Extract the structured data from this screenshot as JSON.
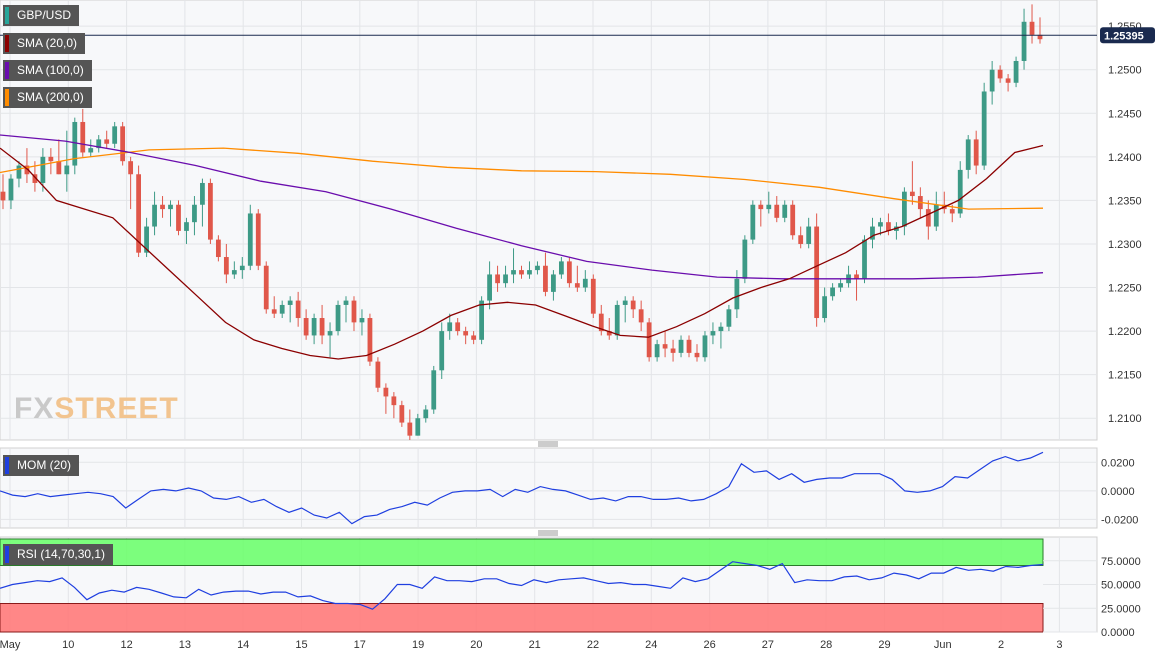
{
  "chart_data": [
    {
      "type": "candlestick",
      "title": "GBP/USD",
      "ylim": [
        1.2075,
        1.258
      ],
      "yticks": [
        "1.2550",
        "1.2500",
        "1.2450",
        "1.2400",
        "1.2350",
        "1.2300",
        "1.2250",
        "1.2200",
        "1.2150",
        "1.2100"
      ],
      "last_price": "1.25395",
      "x_labels": [
        "May",
        "10",
        "12",
        "13",
        "14",
        "15",
        "17",
        "19",
        "20",
        "21",
        "22",
        "24",
        "26",
        "27",
        "28",
        "29",
        "Jun",
        "2",
        "3"
      ],
      "legend": [
        {
          "label": "GBP/USD",
          "color": "#26a69a"
        },
        {
          "label": "SMA (20,0)",
          "color": "#8b0000"
        },
        {
          "label": "SMA (100,0)",
          "color": "#6a0dad"
        },
        {
          "label": "SMA (200,0)",
          "color": "#ff8c00"
        }
      ],
      "candles": [
        [
          1.236,
          1.238,
          1.234,
          1.235
        ],
        [
          1.235,
          1.238,
          1.234,
          1.2375
        ],
        [
          1.2375,
          1.2395,
          1.2365,
          1.239
        ],
        [
          1.239,
          1.241,
          1.237,
          1.238
        ],
        [
          1.238,
          1.2395,
          1.236,
          1.237
        ],
        [
          1.237,
          1.241,
          1.236,
          1.24
        ],
        [
          1.24,
          1.241,
          1.238,
          1.2395
        ],
        [
          1.2395,
          1.242,
          1.238,
          1.238
        ],
        [
          1.238,
          1.243,
          1.236,
          1.239
        ],
        [
          1.239,
          1.2445,
          1.238,
          1.244
        ],
        [
          1.244,
          1.2455,
          1.24,
          1.2405
        ],
        [
          1.2405,
          1.242,
          1.24,
          1.241
        ],
        [
          1.241,
          1.2425,
          1.2405,
          1.242
        ],
        [
          1.242,
          1.243,
          1.241,
          1.2415
        ],
        [
          1.2415,
          1.244,
          1.241,
          1.2435
        ],
        [
          1.2435,
          1.244,
          1.239,
          1.2395
        ],
        [
          1.2395,
          1.24,
          1.234,
          1.238
        ],
        [
          1.238,
          1.239,
          1.2285,
          1.229
        ],
        [
          1.229,
          1.233,
          1.2285,
          1.232
        ],
        [
          1.232,
          1.236,
          1.231,
          1.2345
        ],
        [
          1.2345,
          1.2355,
          1.233,
          1.234
        ],
        [
          1.234,
          1.235,
          1.232,
          1.2345
        ],
        [
          1.2345,
          1.235,
          1.231,
          1.2315
        ],
        [
          1.2315,
          1.233,
          1.23,
          1.2325
        ],
        [
          1.2325,
          1.2355,
          1.231,
          1.2345
        ],
        [
          1.2345,
          1.2375,
          1.232,
          1.237
        ],
        [
          1.237,
          1.2375,
          1.23,
          1.2305
        ],
        [
          1.2305,
          1.231,
          1.228,
          1.2285
        ],
        [
          1.2285,
          1.23,
          1.2255,
          1.2265
        ],
        [
          1.2265,
          1.228,
          1.226,
          1.227
        ],
        [
          1.227,
          1.2285,
          1.226,
          1.2275
        ],
        [
          1.2275,
          1.2345,
          1.227,
          1.2335
        ],
        [
          1.2335,
          1.234,
          1.227,
          1.2275
        ],
        [
          1.2275,
          1.228,
          1.222,
          1.2225
        ],
        [
          1.2225,
          1.224,
          1.2215,
          1.222
        ],
        [
          1.222,
          1.2235,
          1.2215,
          1.223
        ],
        [
          1.223,
          1.224,
          1.221,
          1.2235
        ],
        [
          1.2235,
          1.2245,
          1.2205,
          1.2215
        ],
        [
          1.2215,
          1.2225,
          1.219,
          1.2195
        ],
        [
          1.2195,
          1.222,
          1.2185,
          1.2215
        ],
        [
          1.2215,
          1.223,
          1.2185,
          1.2195
        ],
        [
          1.2195,
          1.221,
          1.217,
          1.22
        ],
        [
          1.22,
          1.2235,
          1.2195,
          1.223
        ],
        [
          1.223,
          1.224,
          1.221,
          1.2235
        ],
        [
          1.2235,
          1.224,
          1.22,
          1.221
        ],
        [
          1.221,
          1.2225,
          1.2195,
          1.2215
        ],
        [
          1.2215,
          1.222,
          1.216,
          1.2165
        ],
        [
          1.2165,
          1.217,
          1.213,
          1.2135
        ],
        [
          1.2135,
          1.214,
          1.2105,
          1.2125
        ],
        [
          1.2125,
          1.213,
          1.21,
          1.2115
        ],
        [
          1.2115,
          1.212,
          1.209,
          1.2095
        ],
        [
          1.2095,
          1.211,
          1.2075,
          1.208
        ],
        [
          1.208,
          1.2105,
          1.208,
          1.21
        ],
        [
          1.21,
          1.2115,
          1.2095,
          1.211
        ],
        [
          1.211,
          1.216,
          1.2105,
          1.2155
        ],
        [
          1.2155,
          1.221,
          1.2145,
          1.22
        ],
        [
          1.22,
          1.222,
          1.219,
          1.221
        ],
        [
          1.221,
          1.2215,
          1.2195,
          1.22
        ],
        [
          1.22,
          1.2205,
          1.2185,
          1.2195
        ],
        [
          1.2195,
          1.22,
          1.2185,
          1.219
        ],
        [
          1.219,
          1.224,
          1.2185,
          1.2235
        ],
        [
          1.2235,
          1.228,
          1.2225,
          1.2265
        ],
        [
          1.2265,
          1.2275,
          1.2245,
          1.2255
        ],
        [
          1.2255,
          1.2275,
          1.225,
          1.2265
        ],
        [
          1.2265,
          1.2295,
          1.2255,
          1.227
        ],
        [
          1.227,
          1.2275,
          1.226,
          1.2265
        ],
        [
          1.2265,
          1.228,
          1.226,
          1.227
        ],
        [
          1.227,
          1.228,
          1.2265,
          1.2275
        ],
        [
          1.2275,
          1.229,
          1.224,
          1.2245
        ],
        [
          1.2245,
          1.227,
          1.2235,
          1.2265
        ],
        [
          1.2265,
          1.2285,
          1.226,
          1.228
        ],
        [
          1.228,
          1.2285,
          1.225,
          1.2255
        ],
        [
          1.2255,
          1.2275,
          1.2245,
          1.225
        ],
        [
          1.225,
          1.227,
          1.2245,
          1.226
        ],
        [
          1.226,
          1.2265,
          1.2215,
          1.222
        ],
        [
          1.222,
          1.223,
          1.2195,
          1.22
        ],
        [
          1.22,
          1.2215,
          1.219,
          1.2195
        ],
        [
          1.2195,
          1.2235,
          1.219,
          1.223
        ],
        [
          1.223,
          1.224,
          1.221,
          1.2235
        ],
        [
          1.2235,
          1.224,
          1.2215,
          1.2225
        ],
        [
          1.2225,
          1.2235,
          1.22,
          1.221
        ],
        [
          1.221,
          1.2215,
          1.2165,
          1.217
        ],
        [
          1.217,
          1.219,
          1.2165,
          1.2185
        ],
        [
          1.2185,
          1.22,
          1.217,
          1.218
        ],
        [
          1.218,
          1.219,
          1.2165,
          1.2175
        ],
        [
          1.2175,
          1.2195,
          1.217,
          1.219
        ],
        [
          1.219,
          1.2195,
          1.217,
          1.2175
        ],
        [
          1.2175,
          1.2185,
          1.2165,
          1.217
        ],
        [
          1.217,
          1.22,
          1.2165,
          1.2195
        ],
        [
          1.2195,
          1.221,
          1.2185,
          1.22
        ],
        [
          1.22,
          1.221,
          1.218,
          1.2205
        ],
        [
          1.2205,
          1.223,
          1.22,
          1.2225
        ],
        [
          1.2225,
          1.227,
          1.2215,
          1.226
        ],
        [
          1.226,
          1.231,
          1.2255,
          1.2305
        ],
        [
          1.2305,
          1.235,
          1.23,
          1.2345
        ],
        [
          1.2345,
          1.235,
          1.232,
          1.234
        ],
        [
          1.234,
          1.236,
          1.2335,
          1.2345
        ],
        [
          1.2345,
          1.2355,
          1.2325,
          1.233
        ],
        [
          1.233,
          1.235,
          1.2325,
          1.2345
        ],
        [
          1.2345,
          1.235,
          1.2305,
          1.231
        ],
        [
          1.231,
          1.232,
          1.2295,
          1.23
        ],
        [
          1.23,
          1.233,
          1.2295,
          1.232
        ],
        [
          1.232,
          1.2335,
          1.2205,
          1.2215
        ],
        [
          1.2215,
          1.225,
          1.221,
          1.224
        ],
        [
          1.224,
          1.2255,
          1.2235,
          1.225
        ],
        [
          1.225,
          1.226,
          1.2245,
          1.2255
        ],
        [
          1.2255,
          1.2275,
          1.225,
          1.2265
        ],
        [
          1.2265,
          1.227,
          1.2235,
          1.226
        ],
        [
          1.226,
          1.231,
          1.2255,
          1.2305
        ],
        [
          1.2305,
          1.233,
          1.2295,
          1.232
        ],
        [
          1.232,
          1.233,
          1.231,
          1.2325
        ],
        [
          1.2325,
          1.2335,
          1.231,
          1.2315
        ],
        [
          1.2315,
          1.2325,
          1.2305,
          1.232
        ],
        [
          1.232,
          1.2365,
          1.231,
          1.236
        ],
        [
          1.236,
          1.2395,
          1.2345,
          1.2355
        ],
        [
          1.2355,
          1.2365,
          1.233,
          1.234
        ],
        [
          1.234,
          1.235,
          1.2305,
          1.232
        ],
        [
          1.232,
          1.236,
          1.2315,
          1.2345
        ],
        [
          1.2345,
          1.236,
          1.2335,
          1.234
        ],
        [
          1.234,
          1.2345,
          1.2325,
          1.2335
        ],
        [
          1.2335,
          1.2395,
          1.233,
          1.2385
        ],
        [
          1.2385,
          1.2425,
          1.2375,
          1.242
        ],
        [
          1.242,
          1.243,
          1.238,
          1.239
        ],
        [
          1.239,
          1.2485,
          1.2385,
          1.2475
        ],
        [
          1.2475,
          1.251,
          1.246,
          1.25
        ],
        [
          1.25,
          1.2505,
          1.2485,
          1.249
        ],
        [
          1.249,
          1.2495,
          1.2475,
          1.2485
        ],
        [
          1.2485,
          1.2515,
          1.248,
          1.251
        ],
        [
          1.251,
          1.257,
          1.25,
          1.2555
        ],
        [
          1.2555,
          1.2575,
          1.253,
          1.254
        ],
        [
          1.254,
          1.256,
          1.253,
          1.2535
        ]
      ],
      "sma20": [
        [
          1.241,
          1.2385,
          1.235,
          1.234,
          1.233,
          1.23,
          1.227,
          1.224,
          1.221,
          1.219,
          1.218,
          1.2172,
          1.2168,
          1.2172,
          1.2185,
          1.22,
          1.2218,
          1.223,
          1.2233,
          1.223,
          1.2218,
          1.2206,
          1.2195,
          1.2193,
          1.2205,
          1.222,
          1.2238,
          1.225,
          1.226,
          1.2275,
          1.229,
          1.231,
          1.232,
          1.2335,
          1.235,
          1.2375,
          1.2405,
          1.2413
        ]
      ],
      "sma100": [
        1.2425,
        1.2418,
        1.2405,
        1.239,
        1.2372,
        1.236,
        1.234,
        1.2318,
        1.2298,
        1.228,
        1.227,
        1.2262,
        1.226,
        1.226,
        1.226,
        1.2262,
        1.2267
      ],
      "sma200": [
        1.2382,
        1.2398,
        1.2408,
        1.241,
        1.2404,
        1.2395,
        1.2388,
        1.2384,
        1.2383,
        1.238,
        1.2374,
        1.2365,
        1.2352,
        1.234,
        1.2341
      ],
      "sma100_note": "",
      "watermark": "FXSTREET"
    },
    {
      "type": "line",
      "title": "MOM (20)",
      "ylim": [
        -0.026,
        0.03
      ],
      "yticks": [
        "0.0200",
        "0.0000",
        "-0.0200"
      ],
      "color": "#1f3fe0",
      "values": [
        0.0,
        -0.003,
        -0.004,
        -0.002,
        -0.004,
        -0.003,
        -0.002,
        -0.001,
        -0.002,
        -0.004,
        -0.012,
        -0.006,
        0.0,
        0.001,
        0.0,
        0.002,
        0.0,
        -0.005,
        -0.006,
        -0.004,
        -0.008,
        -0.006,
        -0.011,
        -0.015,
        -0.012,
        -0.017,
        -0.019,
        -0.015,
        -0.023,
        -0.018,
        -0.017,
        -0.013,
        -0.011,
        -0.008,
        -0.01,
        -0.005,
        -0.001,
        0.0,
        0.0,
        0.001,
        -0.004,
        0.001,
        -0.001,
        0.003,
        0.001,
        0.0,
        -0.003,
        -0.006,
        -0.005,
        -0.007,
        -0.004,
        -0.004,
        -0.006,
        -0.006,
        -0.005,
        -0.007,
        -0.006,
        -0.002,
        0.003,
        0.019,
        0.013,
        0.014,
        0.008,
        0.012,
        0.006,
        0.008,
        0.009,
        0.009,
        0.012,
        0.012,
        0.012,
        0.008,
        0.0,
        -0.001,
        0.0,
        0.003,
        0.01,
        0.009,
        0.015,
        0.021,
        0.024,
        0.021,
        0.023,
        0.027
      ]
    },
    {
      "type": "line",
      "title": "RSI (14,70,30,1)",
      "ylim": [
        0,
        100
      ],
      "yticks": [
        "75.0000",
        "50.0000",
        "25.0000",
        "0.0000"
      ],
      "color": "#1f3fe0",
      "overbought": 70,
      "oversold": 30,
      "values": [
        46,
        50,
        52,
        54,
        53,
        57,
        47,
        34,
        41,
        44,
        42,
        47,
        45,
        41,
        37,
        36,
        45,
        39,
        42,
        43,
        43,
        40,
        42,
        42,
        37,
        38,
        33,
        30,
        30,
        29,
        24,
        35,
        50,
        50,
        46,
        58,
        54,
        54,
        53,
        56,
        56,
        51,
        49,
        55,
        52,
        55,
        56,
        57,
        54,
        51,
        52,
        50,
        50,
        48,
        46,
        57,
        53,
        56,
        65,
        74,
        72,
        70,
        66,
        72,
        52,
        55,
        54,
        54,
        58,
        59,
        55,
        57,
        62,
        60,
        56,
        62,
        62,
        68,
        65,
        66,
        64,
        69,
        68,
        70,
        71
      ]
    }
  ]
}
